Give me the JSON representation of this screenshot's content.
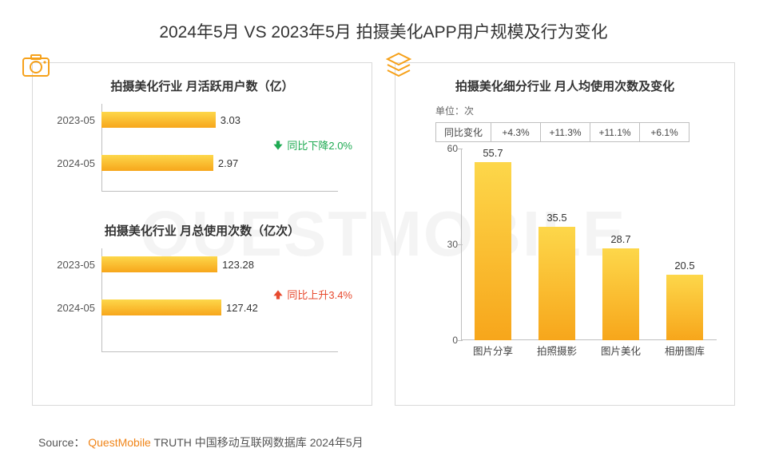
{
  "title": "2024年5月 VS 2023年5月 拍摄美化APP用户规模及行为变化",
  "watermark": "QUESTMOBILE",
  "colors": {
    "bar_gradient_top": "#fdd74a",
    "bar_gradient_bottom": "#f7a61b",
    "axis": "#bfbfbf",
    "text": "#333333",
    "delta_down": "#1eaa52",
    "delta_up": "#e74a2e",
    "panel_border": "#d9d9d9",
    "background": "#ffffff",
    "icon_brand": "#f6a11a"
  },
  "left_panel": {
    "icon": "camera-icon",
    "chart1": {
      "type": "bar-horizontal",
      "title": "拍摄美化行业 月活跃用户数（亿）",
      "max": 4.0,
      "rows": [
        {
          "label": "2023-05",
          "value": 3.03
        },
        {
          "label": "2024-05",
          "value": 2.97
        }
      ],
      "delta": {
        "dir": "down",
        "text": "同比下降2.0%"
      }
    },
    "chart2": {
      "type": "bar-horizontal",
      "title": "拍摄美化行业 月总使用次数（亿次）",
      "max": 160,
      "rows": [
        {
          "label": "2023-05",
          "value": 123.28
        },
        {
          "label": "2024-05",
          "value": 127.42
        }
      ],
      "delta": {
        "dir": "up",
        "text": "同比上升3.4%"
      }
    }
  },
  "right_panel": {
    "icon": "layers-icon",
    "title": "拍摄美化细分行业 月人均使用次数及变化",
    "unit_label": "单位：次",
    "pct_row": {
      "header": "同比变化",
      "values": [
        "+4.3%",
        "+11.3%",
        "+11.1%",
        "+6.1%"
      ]
    },
    "chart": {
      "type": "bar-vertical",
      "ylim": [
        0,
        60
      ],
      "yticks": [
        0,
        30,
        60
      ],
      "categories": [
        "图片分享",
        "拍照摄影",
        "图片美化",
        "相册图库"
      ],
      "values": [
        55.7,
        35.5,
        28.7,
        20.5
      ]
    }
  },
  "source": {
    "prefix": "Source：",
    "brand": "QuestMobile",
    "suffix": "TRUTH 中国移动互联网数据库 2024年5月"
  }
}
